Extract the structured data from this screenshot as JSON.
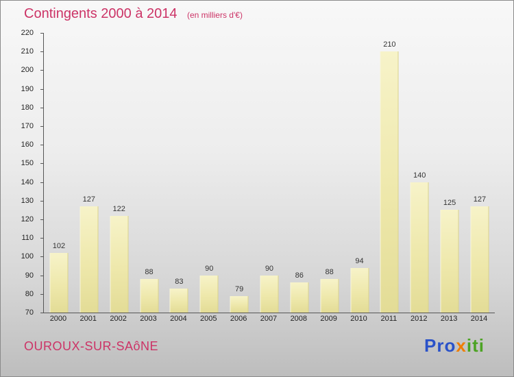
{
  "title": {
    "text": "Contingents 2000 à 2014",
    "subtitle": "(en milliers d'€)"
  },
  "chart_data": {
    "type": "bar",
    "title": "Contingents 2000 à 2014",
    "subtitle": "(en milliers d'€)",
    "categories": [
      "2000",
      "2001",
      "2002",
      "2003",
      "2004",
      "2005",
      "2006",
      "2007",
      "2008",
      "2009",
      "2010",
      "2011",
      "2012",
      "2013",
      "2014"
    ],
    "values": [
      102,
      127,
      122,
      88,
      83,
      90,
      79,
      90,
      86,
      88,
      94,
      210,
      140,
      125,
      127
    ],
    "xlabel": "",
    "ylabel": "",
    "ylim": [
      70,
      220
    ],
    "ytick_step": 10,
    "grid": false,
    "legend": "none",
    "bar_color": "#eee8ab",
    "value_label_color": "#333333"
  },
  "footer": {
    "location": "OUROUX-SUR-SAôNE"
  },
  "logo": {
    "text": "Proxiti",
    "letters": [
      {
        "ch": "P",
        "color": "#2a52c9"
      },
      {
        "ch": "r",
        "color": "#2a52c9"
      },
      {
        "ch": "o",
        "color": "#2a52c9"
      },
      {
        "ch": "x",
        "color": "#f07d00"
      },
      {
        "ch": "i",
        "color": "#4ca323"
      },
      {
        "ch": "t",
        "color": "#4ca323"
      },
      {
        "ch": "i",
        "color": "#4ca323"
      }
    ]
  },
  "colors": {
    "accent": "#cc3366",
    "axis": "#555555"
  }
}
